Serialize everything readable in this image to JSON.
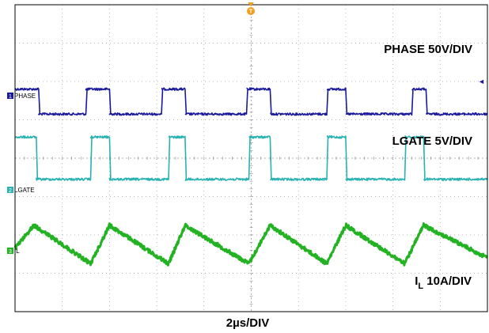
{
  "chart_data": {
    "type": "line",
    "title": "",
    "time_scale_label": "2µs/DIV",
    "x_unit": "µs",
    "x_per_div": 2,
    "x_divisions": 10,
    "y_divisions": 8,
    "grid": true,
    "trigger_marker": "T",
    "edge_marker": "◄",
    "channels": [
      {
        "id": "1",
        "channel_label": "PHASE",
        "scale_label": "PHASE 50V/DIV",
        "color": "#1a1a9c",
        "kind": "pulse",
        "high_level_div": -1.8,
        "low_level_div": -1.15,
        "rise_times_us": [
          3.0,
          6.2,
          9.8,
          13.2,
          16.8
        ],
        "fall_times_us": [
          1.0,
          4.0,
          7.2,
          10.8,
          14.0,
          17.4
        ],
        "initial_state": "high",
        "noise_div": 0.03
      },
      {
        "id": "2",
        "channel_label": "LGATE",
        "scale_label": "LGATE 5V/DIV",
        "color": "#2ab2b2",
        "kind": "pulse",
        "high_level_div": 0.55,
        "low_level_div": -0.55,
        "rise_times_us": [
          0.9,
          4.0,
          7.2,
          10.8,
          14.0,
          17.3
        ],
        "fall_times_us": [
          3.2,
          6.5,
          9.9,
          13.2,
          16.5
        ],
        "initial_state": "low",
        "noise_div": 0.03
      },
      {
        "id": "3",
        "channel_label": "IL",
        "scale_label_main": "I",
        "scale_label_sub": "L",
        "scale_label_rest": " 10A/DIV",
        "color": "#22b222",
        "kind": "triangle",
        "peak_times_us": [
          0.8,
          4.0,
          7.2,
          10.8,
          14.0,
          17.3
        ],
        "valley_times_us": [
          3.2,
          6.5,
          9.9,
          13.2,
          16.5
        ],
        "peak_level_div": 1.75,
        "valley_level_div": 2.75,
        "start_level_div": 2.35,
        "end_level_div": 2.6,
        "noise_div": 0.05
      }
    ]
  }
}
